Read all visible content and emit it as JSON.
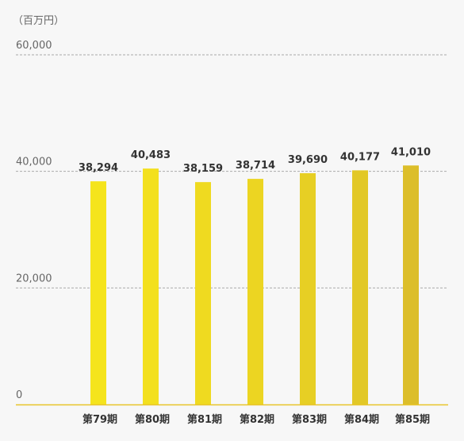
{
  "chart_data": {
    "type": "bar",
    "unit_label": "（百万円）",
    "categories": [
      "第79期",
      "第80期",
      "第81期",
      "第82期",
      "第83期",
      "第84期",
      "第85期"
    ],
    "values": [
      38294,
      40483,
      38159,
      38714,
      39690,
      40177,
      41010
    ],
    "data_labels": [
      "38,294",
      "40,483",
      "38,159",
      "38,714",
      "39,690",
      "40,177",
      "41,010"
    ],
    "y_ticks": [
      0,
      20000,
      40000,
      60000
    ],
    "y_tick_labels": [
      "0",
      "20,000",
      "40,000",
      "60,000"
    ],
    "ylim": [
      0,
      60000
    ],
    "grid": true,
    "bar_colors": [
      "#f5e41c",
      "#f3e01e",
      "#efda20",
      "#ecd522",
      "#e7cf24",
      "#e2c826",
      "#dcbe2a"
    ],
    "grid_color": "#aaaaaa",
    "axis_color": "#e8c52a"
  }
}
